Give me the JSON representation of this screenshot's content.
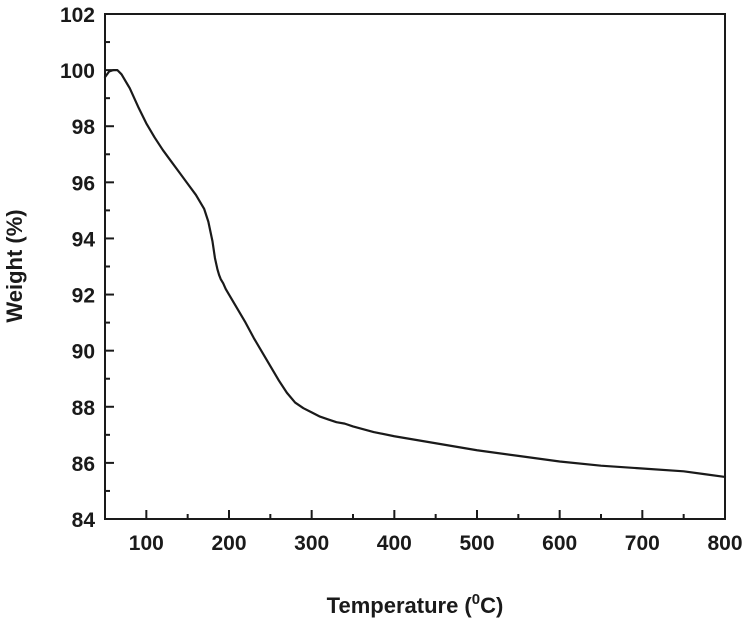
{
  "chart_data": {
    "type": "line",
    "title": "",
    "xlabel": "Temperature (",
    "xlabel_sup": "0",
    "xlabel_end": "C)",
    "ylabel": "Weight (%)",
    "xlim": [
      50,
      800
    ],
    "ylim": [
      84,
      102
    ],
    "xticks": [
      100,
      200,
      300,
      400,
      500,
      600,
      700,
      800
    ],
    "yticks": [
      84,
      86,
      88,
      90,
      92,
      94,
      96,
      98,
      100,
      102
    ],
    "grid": false,
    "legend": "none",
    "line_color": "#1a1a1a",
    "series": [
      {
        "x": [
          50,
          55,
          60,
          65,
          70,
          80,
          90,
          100,
          110,
          120,
          130,
          140,
          150,
          160,
          170,
          175,
          180,
          183,
          186,
          188,
          190,
          193,
          196,
          200,
          210,
          220,
          230,
          240,
          250,
          260,
          270,
          280,
          290,
          300,
          310,
          320,
          330,
          340,
          350,
          375,
          400,
          450,
          500,
          550,
          600,
          650,
          700,
          750,
          775,
          800
        ],
        "y": [
          99.75,
          99.95,
          100.0,
          100.0,
          99.85,
          99.35,
          98.7,
          98.1,
          97.6,
          97.15,
          96.75,
          96.35,
          95.95,
          95.55,
          95.05,
          94.6,
          93.9,
          93.3,
          92.9,
          92.7,
          92.55,
          92.4,
          92.2,
          92.0,
          91.5,
          91.0,
          90.45,
          89.95,
          89.45,
          88.95,
          88.5,
          88.15,
          87.95,
          87.8,
          87.65,
          87.55,
          87.45,
          87.4,
          87.3,
          87.1,
          86.95,
          86.7,
          86.45,
          86.25,
          86.05,
          85.9,
          85.8,
          85.7,
          85.6,
          85.5
        ]
      }
    ]
  }
}
